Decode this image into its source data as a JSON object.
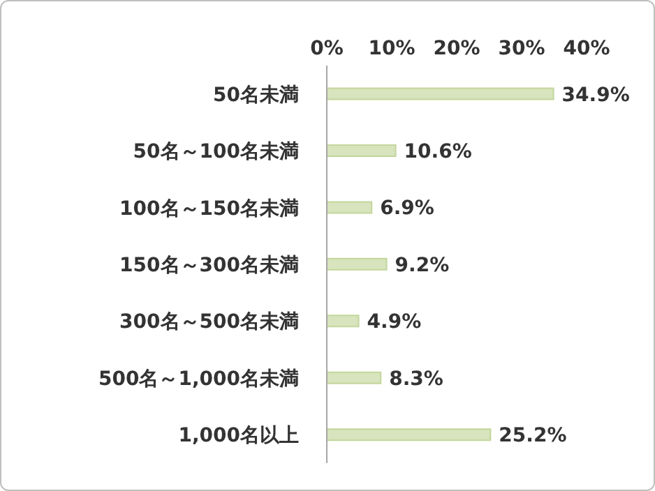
{
  "chart_data": {
    "type": "bar",
    "orientation": "horizontal",
    "categories": [
      "50名未満",
      "50名～100名未満",
      "100名～150名未満",
      "150名～300名未満",
      "300名～500名未満",
      "500名～1,000名未満",
      "1,000名以上"
    ],
    "values": [
      34.9,
      10.6,
      6.9,
      9.2,
      4.9,
      8.3,
      25.2
    ],
    "value_labels": [
      "34.9%",
      "10.6%",
      "6.9%",
      "9.2%",
      "4.9%",
      "8.3%",
      "25.2%"
    ],
    "color": "#d7e4bd",
    "xlim": [
      0,
      40
    ],
    "xticks": [
      {
        "value": 0,
        "label": "0%"
      },
      {
        "value": 10,
        "label": "10%"
      },
      {
        "value": 20,
        "label": "20%"
      },
      {
        "value": 30,
        "label": "30%"
      },
      {
        "value": 40,
        "label": "40%"
      }
    ]
  }
}
